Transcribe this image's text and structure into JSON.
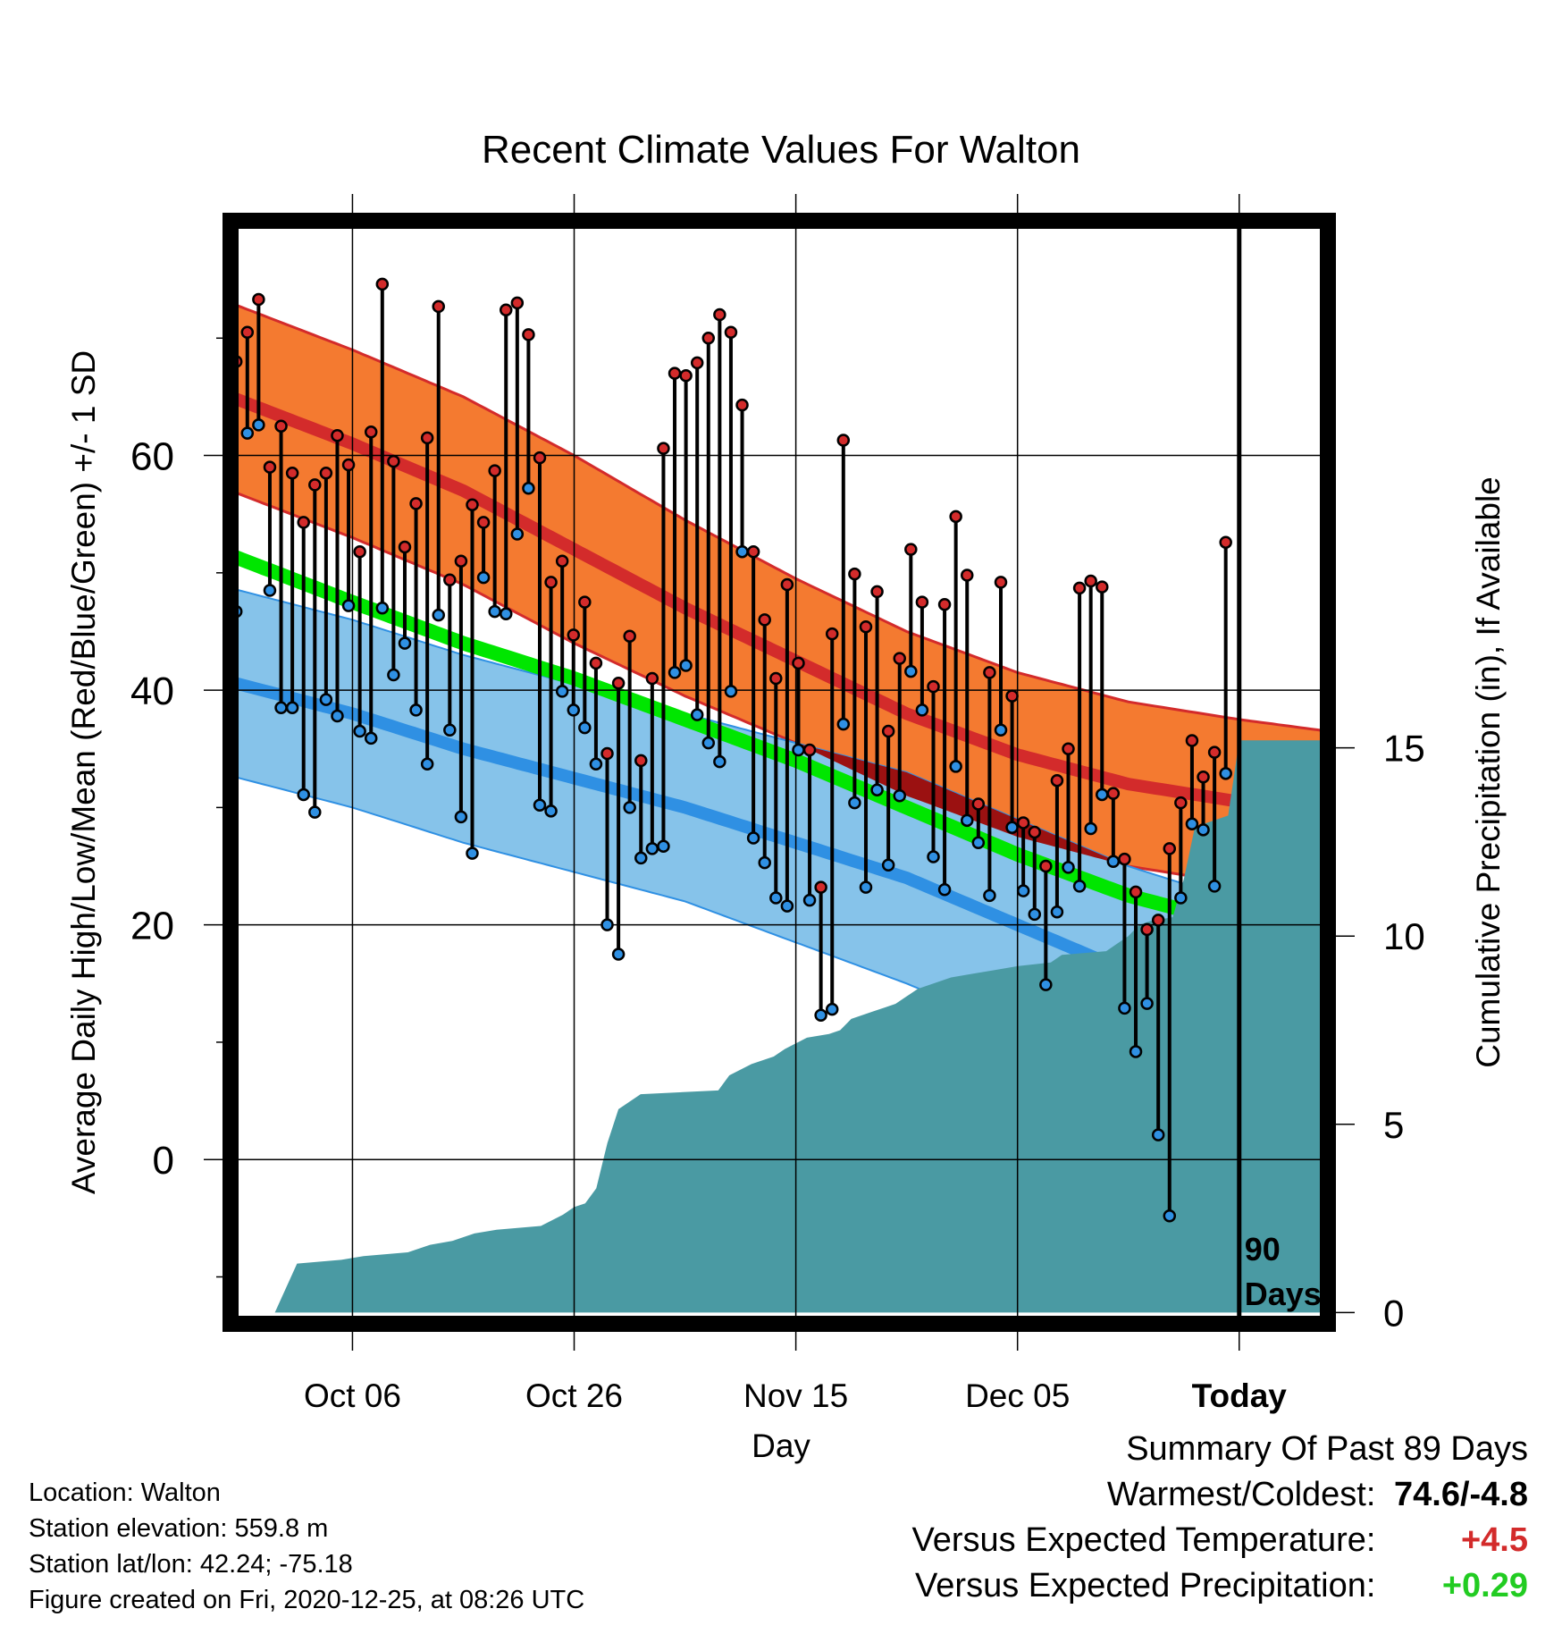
{
  "chart_data": {
    "type": "line",
    "title": "Recent Climate Values For Walton",
    "xlabel": "Day",
    "ylabel": "Average Daily High/Low/Mean (Red/Blue/Green) +/- 1 SD",
    "y2label": "Cumulative Precipitation (in), If Available",
    "xlim": [
      -11,
      88
    ],
    "ylim": [
      -14,
      80
    ],
    "y2lim": [
      -0.3,
      29
    ],
    "x_ticks": [
      {
        "x": 0,
        "label": "Oct 06"
      },
      {
        "x": 20,
        "label": "Oct 26"
      },
      {
        "x": 40,
        "label": "Nov 15"
      },
      {
        "x": 60,
        "label": "Dec 05"
      },
      {
        "x": 80,
        "label": "Today"
      }
    ],
    "y_ticks": [
      0,
      20,
      40,
      60
    ],
    "y2_ticks": [
      0,
      5,
      10,
      15
    ],
    "grid": true,
    "today_x": 80,
    "annotation": "90\nDays",
    "normals": {
      "x": [
        -11,
        0,
        10,
        20,
        30,
        40,
        50,
        60,
        70,
        80,
        88
      ],
      "high": [
        65,
        61,
        57,
        52,
        47,
        42.5,
        38,
        34.5,
        32,
        30.5,
        29.5
      ],
      "high_sd": [
        8,
        8,
        8,
        8,
        7.5,
        7,
        7,
        7,
        7,
        7,
        7
      ],
      "low": [
        40.7,
        38,
        35,
        32.5,
        30,
        27,
        24,
        20,
        16,
        13,
        11
      ],
      "low_sd": [
        8,
        8,
        8,
        8,
        8,
        8.5,
        9,
        9,
        9,
        9,
        9
      ],
      "mean": [
        51.5,
        47.5,
        44,
        41,
        37.5,
        34,
        30,
        26,
        22.5,
        20,
        19
      ]
    },
    "series": [
      {
        "name": "High",
        "color": "#d32b2b",
        "values": [
          68,
          70.5,
          73.3,
          59,
          62.5,
          58.5,
          54.3,
          57.5,
          58.5,
          61.7,
          59.2,
          51.8,
          62,
          74.6,
          59.5,
          52.2,
          55.9,
          61.5,
          72.7,
          49.4,
          51,
          55.8,
          54.3,
          58.7,
          72.4,
          73,
          70.3,
          59.8,
          49.2,
          51,
          44.7,
          47.5,
          42.3,
          34.6,
          40.6,
          44.6,
          34,
          41,
          60.6,
          67,
          66.8,
          67.9,
          70,
          72,
          70.5,
          64.3,
          51.8,
          46,
          41,
          49,
          42.3,
          34.9,
          23.2,
          44.8,
          61.3,
          49.9,
          45.4,
          48.4,
          36.5,
          42.7,
          52,
          47.5,
          40.3,
          47.3,
          54.8,
          49.8,
          30.3,
          41.5,
          49.2,
          39.5,
          28.7,
          27.9,
          25,
          32.3,
          35,
          48.7,
          49.3,
          48.8,
          31.2,
          25.6,
          22.8,
          19.6,
          20.4,
          26.5,
          30.4,
          35.7,
          32.6,
          34.7,
          52.6
        ]
      },
      {
        "name": "Low",
        "color": "#2f90e3",
        "values": [
          46.7,
          61.9,
          62.6,
          48.5,
          38.5,
          38.5,
          31.1,
          29.6,
          39.2,
          37.8,
          47.2,
          36.5,
          35.9,
          47,
          41.3,
          44,
          38.3,
          33.7,
          46.4,
          36.6,
          29.2,
          26.1,
          49.6,
          46.7,
          46.5,
          53.3,
          57.2,
          30.2,
          29.7,
          39.9,
          38.3,
          36.8,
          33.7,
          20,
          17.5,
          30,
          25.7,
          26.5,
          26.7,
          41.5,
          42.1,
          37.9,
          35.5,
          33.9,
          39.9,
          51.8,
          27.4,
          25.3,
          22.3,
          21.6,
          34.9,
          22.1,
          12.3,
          12.8,
          37.1,
          30.4,
          23.2,
          31.5,
          25.1,
          31,
          41.6,
          38.3,
          25.8,
          23,
          33.5,
          28.9,
          27,
          22.5,
          36.6,
          28.3,
          22.9,
          20.9,
          14.9,
          21.1,
          24.9,
          23.3,
          28.2,
          31.1,
          25.4,
          12.9,
          9.2,
          13.3,
          2.1,
          -4.8,
          22.3,
          28.6,
          28.1,
          23.3,
          32.9
        ]
      },
      {
        "name": "Cumulative Precipitation",
        "color": "#4a9aa3",
        "x": [
          -11,
          -10,
          -8,
          -7,
          -5,
          -1,
          1,
          5,
          7,
          9,
          11,
          13,
          17,
          19,
          20,
          21,
          22,
          23,
          24,
          26,
          33,
          34,
          36,
          38,
          39,
          41,
          43,
          44,
          45,
          47,
          48,
          49,
          51,
          53,
          54,
          56,
          58,
          60,
          63,
          64,
          68,
          69,
          70,
          71,
          72,
          74,
          75,
          76,
          77,
          78,
          79,
          80,
          88
        ],
        "values": [
          0,
          0,
          0,
          0,
          1.3,
          1.4,
          1.5,
          1.6,
          1.8,
          1.9,
          2.1,
          2.2,
          2.3,
          2.6,
          2.8,
          2.9,
          3.3,
          4.5,
          5.4,
          5.8,
          5.9,
          6.3,
          6.6,
          6.8,
          7,
          7.3,
          7.4,
          7.5,
          7.8,
          8,
          8.1,
          8.2,
          8.6,
          8.8,
          8.9,
          9.0,
          9.1,
          9.2,
          9.3,
          9.5,
          9.6,
          9.8,
          10.0,
          10.3,
          10.4,
          10.5,
          11.5,
          12.9,
          13.0,
          13.1,
          13.2,
          15.2,
          15.2
        ]
      }
    ]
  },
  "footer": {
    "location": "Location: Walton",
    "elevation": "Station elevation: 559.8 m",
    "latlon": "Station lat/lon: 42.24; -75.18",
    "created": "Figure created on Fri, 2020-12-25, at 08:26 UTC"
  },
  "summary": {
    "heading": "Summary Of Past 89 Days",
    "warmest_label": "Warmest/Coldest:",
    "warmest_value": "74.6/-4.8",
    "temp_label": "Versus Expected Temperature:",
    "temp_value": "+4.5",
    "precip_label": "Versus Expected Precipitation:",
    "precip_value": "+0.29"
  },
  "colors": {
    "high_band": "#f47a30",
    "high_mean": "#d32b2b",
    "low_band": "#86c3ea",
    "low_mean": "#2f90e3",
    "mean": "#00e600",
    "overlap": "#9b1111",
    "precip": "#4a9aa3",
    "temp_value": "#d32b2b",
    "precip_value": "#22cc22"
  }
}
